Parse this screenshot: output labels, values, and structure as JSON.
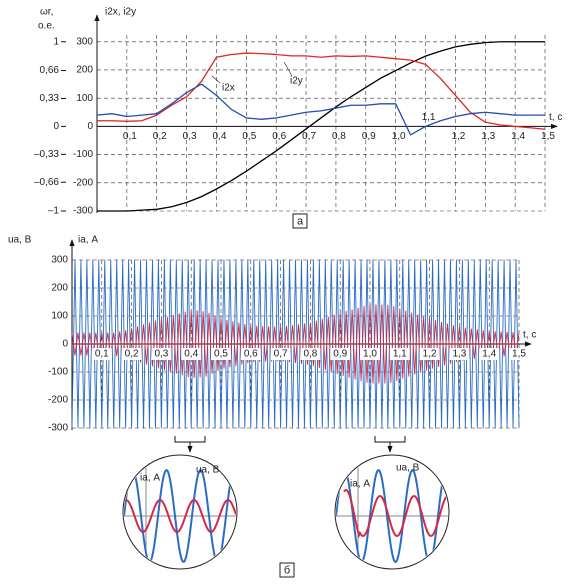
{
  "chart_data": [
    {
      "type": "line",
      "label": "а",
      "y_label": [
        "ωr,",
        "о.е."
      ],
      "y2_label": "i2x, i2y",
      "x_label": "t, с",
      "x": [
        0,
        0.05,
        0.1,
        0.15,
        0.2,
        0.25,
        0.3,
        0.35,
        0.4,
        0.45,
        0.5,
        0.55,
        0.6,
        0.65,
        0.7,
        0.75,
        0.8,
        0.85,
        0.9,
        0.95,
        1.0,
        1.05,
        1.1,
        1.15,
        1.2,
        1.25,
        1.3,
        1.35,
        1.4,
        1.45,
        1.5
      ],
      "xlim": [
        0,
        1.5
      ],
      "xticks": [
        {
          "value": 0.1,
          "label": "0,1"
        },
        {
          "value": 0.2,
          "label": "0,2"
        },
        {
          "value": 0.3,
          "label": "0,3"
        },
        {
          "value": 0.4,
          "label": "0,4"
        },
        {
          "value": 0.5,
          "label": "0,5"
        },
        {
          "value": 0.6,
          "label": "0,6"
        },
        {
          "value": 0.7,
          "label": "0,7"
        },
        {
          "value": 0.8,
          "label": "0,8"
        },
        {
          "value": 0.9,
          "label": "0,9"
        },
        {
          "value": 1.0,
          "label": "1,0"
        },
        {
          "value": 1.1,
          "label": "1,1"
        },
        {
          "value": 1.2,
          "label": "1,2"
        },
        {
          "value": 1.3,
          "label": "1,3"
        },
        {
          "value": 1.4,
          "label": "1,4"
        },
        {
          "value": 1.5,
          "label": "1,5"
        }
      ],
      "ylim": [
        -1,
        1.08
      ],
      "yticks": [
        1,
        {
          "value": 0.66,
          "label": "0,66"
        },
        {
          "value": 0.33,
          "label": "0,33"
        },
        0,
        {
          "value": -0.33,
          "label": "–0,33"
        },
        {
          "value": -0.66,
          "label": "–0,66"
        },
        {
          "value": -1,
          "label": "–1"
        }
      ],
      "y2lim": [
        -300,
        324
      ],
      "y2ticks": [
        300,
        200,
        100,
        0,
        -100,
        -200,
        -300
      ],
      "grid": true,
      "series": [
        {
          "color": "#000000",
          "values": [
            -1,
            -1,
            -1,
            -0.99,
            -0.98,
            -0.95,
            -0.9,
            -0.83,
            -0.74,
            -0.64,
            -0.53,
            -0.41,
            -0.29,
            -0.16,
            -0.03,
            0.1,
            0.23,
            0.35,
            0.46,
            0.57,
            0.66,
            0.75,
            0.83,
            0.89,
            0.94,
            0.97,
            0.99,
            1.0,
            1.0,
            1.0,
            1.0
          ]
        },
        {
          "name": "i2y",
          "color": "#e52420",
          "axis": "y2",
          "values": [
            20,
            20,
            18,
            20,
            40,
            75,
            105,
            160,
            245,
            255,
            260,
            258,
            255,
            250,
            250,
            245,
            250,
            248,
            250,
            245,
            240,
            235,
            220,
            170,
            110,
            50,
            15,
            5,
            0,
            -5,
            -10
          ]
        },
        {
          "name": "i2x",
          "color": "#1f4fb0",
          "axis": "y2",
          "values": [
            40,
            45,
            35,
            40,
            45,
            80,
            120,
            150,
            110,
            60,
            30,
            25,
            30,
            40,
            50,
            55,
            65,
            75,
            75,
            80,
            80,
            -30,
            0,
            20,
            35,
            45,
            50,
            45,
            40,
            40,
            40
          ]
        }
      ]
    },
    {
      "type": "line",
      "label": "б",
      "y_label": [
        "ua, В",
        "ia, А"
      ],
      "x_label": "t, с",
      "x": [
        0,
        0.01,
        0.02,
        0.03,
        0.04,
        0.05,
        0.06,
        0.07,
        0.08,
        0.09,
        0.1,
        0.11,
        0.12,
        0.13,
        0.14,
        0.15,
        0.16,
        0.17,
        0.18,
        0.19,
        0.2,
        0.21,
        0.22,
        0.23,
        0.24,
        0.25,
        0.26,
        0.27,
        0.28,
        0.29,
        0.3,
        0.31,
        0.32,
        0.33,
        0.34,
        0.35,
        0.36,
        0.37,
        0.38,
        0.39,
        0.4,
        0.41,
        0.42,
        0.43,
        0.44,
        0.45,
        0.46,
        0.47,
        0.48,
        0.49,
        0.5,
        0.51,
        0.52,
        0.53,
        0.54,
        0.55,
        0.56,
        0.57,
        0.58,
        0.59,
        0.6,
        0.61,
        0.62,
        0.63,
        0.64,
        0.65,
        0.66,
        0.67,
        0.68,
        0.69,
        0.7,
        0.71,
        0.72,
        0.73,
        0.74,
        0.75,
        0.76,
        0.77,
        0.78,
        0.79,
        0.8,
        0.81,
        0.82,
        0.83,
        0.84,
        0.85,
        0.86,
        0.87,
        0.88,
        0.89,
        0.9,
        0.91,
        0.92,
        0.93,
        0.94,
        0.95,
        0.96,
        0.97,
        0.98,
        0.99,
        1.0,
        1.01,
        1.02,
        1.03,
        1.04,
        1.05,
        1.06,
        1.07,
        1.08,
        1.09,
        1.1,
        1.11,
        1.12,
        1.13,
        1.14,
        1.15,
        1.16,
        1.17,
        1.18,
        1.19,
        1.2,
        1.21,
        1.22,
        1.23,
        1.24,
        1.25,
        1.26,
        1.27,
        1.28,
        1.29,
        1.3,
        1.31,
        1.32,
        1.33,
        1.34,
        1.35,
        1.36,
        1.37,
        1.38,
        1.39,
        1.4,
        1.41,
        1.42,
        1.43,
        1.44,
        1.45,
        1.46,
        1.47,
        1.48,
        1.49,
        1.5
      ],
      "xlim": [
        0,
        1.5
      ],
      "xticks": [
        {
          "value": 0.1,
          "label": "0,1"
        },
        {
          "value": 0.2,
          "label": "0,2"
        },
        {
          "value": 0.3,
          "label": "0,3"
        },
        {
          "value": 0.4,
          "label": "0,4"
        },
        {
          "value": 0.5,
          "label": "0,5"
        },
        {
          "value": 0.6,
          "label": "0,6"
        },
        {
          "value": 0.7,
          "label": "0,7"
        },
        {
          "value": 0.8,
          "label": "0,8"
        },
        {
          "value": 0.9,
          "label": "0,9"
        },
        {
          "value": 1.0,
          "label": "1,0"
        },
        {
          "value": 1.1,
          "label": "1,1"
        },
        {
          "value": 1.2,
          "label": "1,2"
        },
        {
          "value": 1.3,
          "label": "1,3"
        },
        {
          "value": 1.4,
          "label": "1,4"
        },
        {
          "value": 1.5,
          "label": "1,5"
        }
      ],
      "ylim": [
        -300,
        300
      ],
      "yticks": [
        300,
        200,
        100,
        0,
        -100,
        -200,
        -300
      ],
      "grid": true,
      "series": [
        {
          "color": "#2a6cc4",
          "values": [
            -300,
            300,
            -300,
            300,
            -300,
            300,
            -300,
            300,
            -300,
            300,
            -300,
            300,
            -300,
            300,
            -300,
            300,
            -300,
            300,
            -300,
            300,
            -300,
            300,
            -300,
            300,
            -300,
            300,
            -300,
            300,
            -300,
            300,
            -300,
            300,
            -300,
            300,
            -300,
            300,
            -300,
            300,
            -300,
            300,
            -300,
            300,
            -300,
            300,
            -300,
            300,
            -300,
            300,
            -300,
            300,
            -300,
            300,
            -300,
            300,
            -300,
            300,
            -300,
            300,
            -300,
            300,
            -300,
            300,
            -300,
            300,
            -300,
            300,
            -300,
            300,
            -300,
            300,
            -300,
            300,
            -300,
            300,
            -300,
            300,
            -300,
            300,
            -300,
            300,
            -300,
            300,
            -300,
            300,
            -300,
            300,
            -300,
            300,
            -300,
            300,
            -300,
            300,
            -300,
            300,
            -300,
            300,
            -300,
            300,
            -300,
            300,
            -300,
            300,
            -300,
            300,
            -300,
            300,
            -300,
            300,
            -300,
            300,
            -300,
            300,
            -300,
            300,
            -300,
            300,
            -300,
            300,
            -300,
            300,
            -300,
            300,
            -300,
            300,
            -300,
            300,
            -300,
            300,
            -300,
            300,
            -300,
            300,
            -300,
            300,
            -300,
            300,
            -300,
            300,
            -300,
            300,
            -300,
            300,
            -300,
            300,
            -300,
            300,
            -300,
            300,
            -300,
            300,
            -300
          ]
        },
        {
          "color": "#d42a44",
          "values": [
            40,
            -40,
            40,
            -40,
            40,
            -40,
            40,
            -40,
            40,
            -40,
            40,
            -40,
            40,
            -40,
            40,
            -42,
            44,
            -46,
            48,
            -52,
            55,
            -58,
            62,
            -65,
            69,
            -72,
            76,
            -79,
            83,
            -86,
            90,
            -93,
            96,
            -99,
            102,
            -105,
            108,
            -111,
            114,
            -117,
            120,
            -120,
            119,
            -118,
            116,
            -115,
            110,
            -105,
            100,
            -95,
            90,
            -87,
            85,
            -82,
            80,
            -77,
            75,
            -72,
            70,
            -67,
            65,
            -64,
            64,
            -63,
            63,
            -62,
            62,
            -61,
            61,
            -60,
            60,
            -61,
            63,
            -64,
            66,
            -67,
            69,
            -70,
            72,
            -73,
            75,
            -78,
            82,
            -85,
            89,
            -92,
            96,
            -99,
            103,
            -106,
            110,
            -113,
            116,
            -119,
            122,
            -125,
            128,
            -131,
            134,
            -137,
            140,
            -140,
            140,
            -140,
            140,
            -140,
            139,
            -137,
            134,
            -131,
            125,
            -122,
            118,
            -115,
            111,
            -108,
            104,
            -101,
            97,
            -94,
            90,
            -87,
            84,
            -81,
            78,
            -75,
            72,
            -69,
            66,
            -63,
            60,
            -58,
            57,
            -55,
            54,
            -52,
            51,
            -49,
            48,
            -46,
            45,
            -45,
            44,
            -44,
            43,
            -43,
            42,
            -42,
            41,
            -41,
            40
          ]
        }
      ],
      "insets": [
        [
          "ia, А",
          "ua, В"
        ],
        [
          "ia, А",
          "ua, В"
        ]
      ]
    }
  ]
}
